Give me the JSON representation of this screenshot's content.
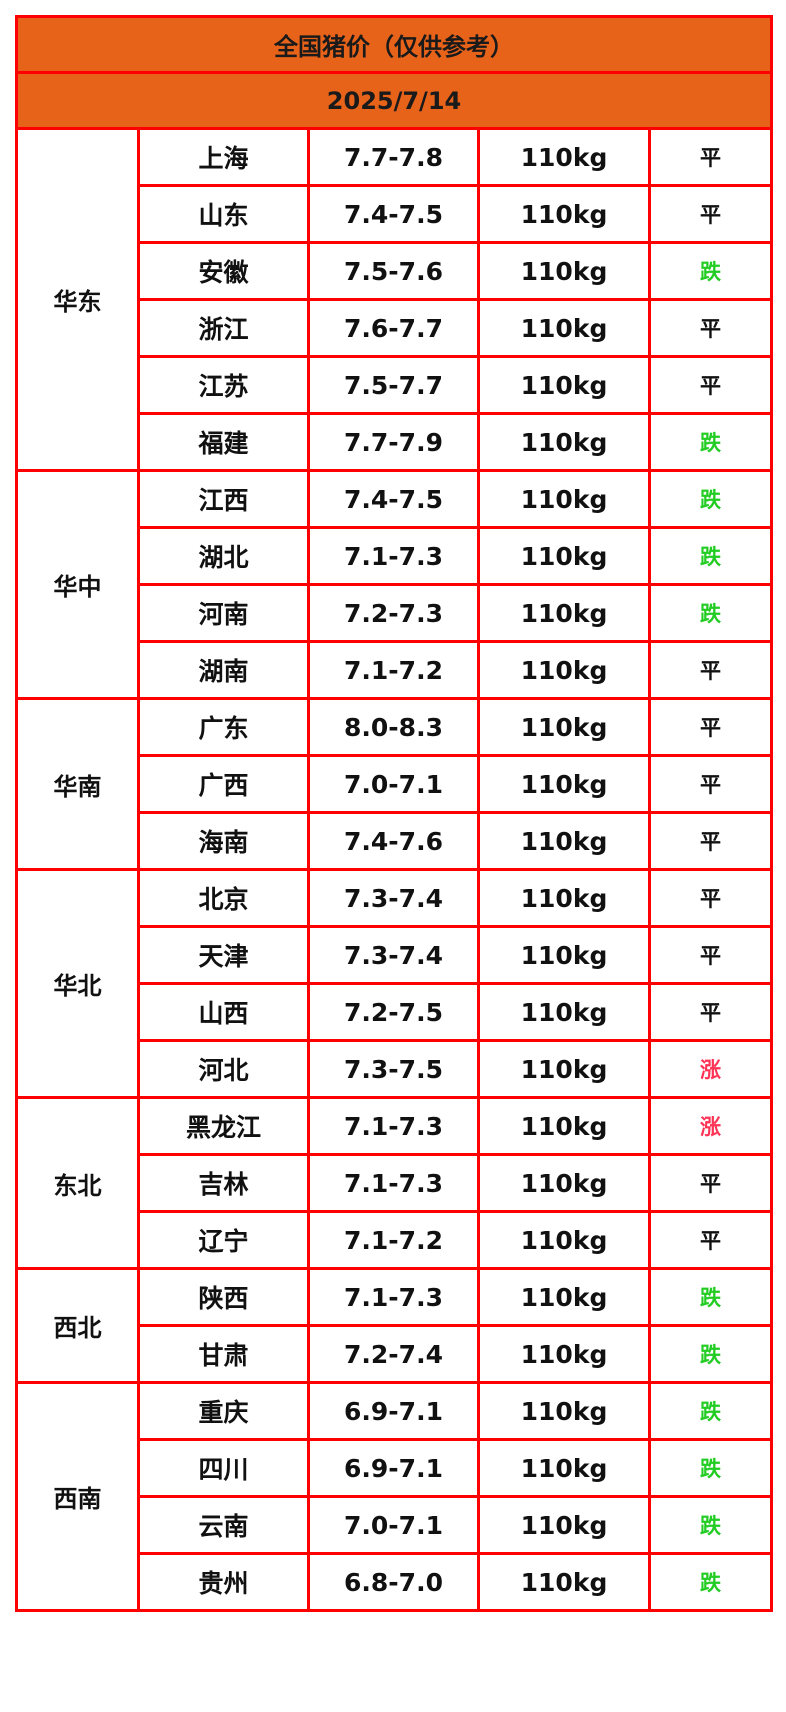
{
  "title": "全国猪价（仅供参考）",
  "date": "2025/7/14",
  "colors": {
    "header_bg": "#e8631a",
    "border": "#ff0000",
    "flat": "#111111",
    "down": "#22cc22",
    "up": "#ff3355"
  },
  "regions": [
    {
      "name": "华东",
      "rows": [
        {
          "province": "上海",
          "price": "7.7-7.8",
          "weight": "110kg",
          "trend": "平"
        },
        {
          "province": "山东",
          "price": "7.4-7.5",
          "weight": "110kg",
          "trend": "平"
        },
        {
          "province": "安徽",
          "price": "7.5-7.6",
          "weight": "110kg",
          "trend": "跌"
        },
        {
          "province": "浙江",
          "price": "7.6-7.7",
          "weight": "110kg",
          "trend": "平"
        },
        {
          "province": "江苏",
          "price": "7.5-7.7",
          "weight": "110kg",
          "trend": "平"
        },
        {
          "province": "福建",
          "price": "7.7-7.9",
          "weight": "110kg",
          "trend": "跌"
        }
      ]
    },
    {
      "name": "华中",
      "rows": [
        {
          "province": "江西",
          "price": "7.4-7.5",
          "weight": "110kg",
          "trend": "跌"
        },
        {
          "province": "湖北",
          "price": "7.1-7.3",
          "weight": "110kg",
          "trend": "跌"
        },
        {
          "province": "河南",
          "price": "7.2-7.3",
          "weight": "110kg",
          "trend": "跌"
        },
        {
          "province": "湖南",
          "price": "7.1-7.2",
          "weight": "110kg",
          "trend": "平"
        }
      ]
    },
    {
      "name": "华南",
      "rows": [
        {
          "province": "广东",
          "price": "8.0-8.3",
          "weight": "110kg",
          "trend": "平"
        },
        {
          "province": "广西",
          "price": "7.0-7.1",
          "weight": "110kg",
          "trend": "平"
        },
        {
          "province": "海南",
          "price": "7.4-7.6",
          "weight": "110kg",
          "trend": "平"
        }
      ]
    },
    {
      "name": "华北",
      "rows": [
        {
          "province": "北京",
          "price": "7.3-7.4",
          "weight": "110kg",
          "trend": "平"
        },
        {
          "province": "天津",
          "price": "7.3-7.4",
          "weight": "110kg",
          "trend": "平"
        },
        {
          "province": "山西",
          "price": "7.2-7.5",
          "weight": "110kg",
          "trend": "平"
        },
        {
          "province": "河北",
          "price": "7.3-7.5",
          "weight": "110kg",
          "trend": "涨"
        }
      ]
    },
    {
      "name": "东北",
      "rows": [
        {
          "province": "黑龙江",
          "price": "7.1-7.3",
          "weight": "110kg",
          "trend": "涨"
        },
        {
          "province": "吉林",
          "price": "7.1-7.3",
          "weight": "110kg",
          "trend": "平"
        },
        {
          "province": "辽宁",
          "price": "7.1-7.2",
          "weight": "110kg",
          "trend": "平"
        }
      ]
    },
    {
      "name": "西北",
      "rows": [
        {
          "province": "陕西",
          "price": "7.1-7.3",
          "weight": "110kg",
          "trend": "跌"
        },
        {
          "province": "甘肃",
          "price": "7.2-7.4",
          "weight": "110kg",
          "trend": "跌"
        }
      ]
    },
    {
      "name": "西南",
      "rows": [
        {
          "province": "重庆",
          "price": "6.9-7.1",
          "weight": "110kg",
          "trend": "跌"
        },
        {
          "province": "四川",
          "price": "6.9-7.1",
          "weight": "110kg",
          "trend": "跌"
        },
        {
          "province": "云南",
          "price": "7.0-7.1",
          "weight": "110kg",
          "trend": "跌"
        },
        {
          "province": "贵州",
          "price": "6.8-7.0",
          "weight": "110kg",
          "trend": "跌"
        }
      ]
    }
  ]
}
